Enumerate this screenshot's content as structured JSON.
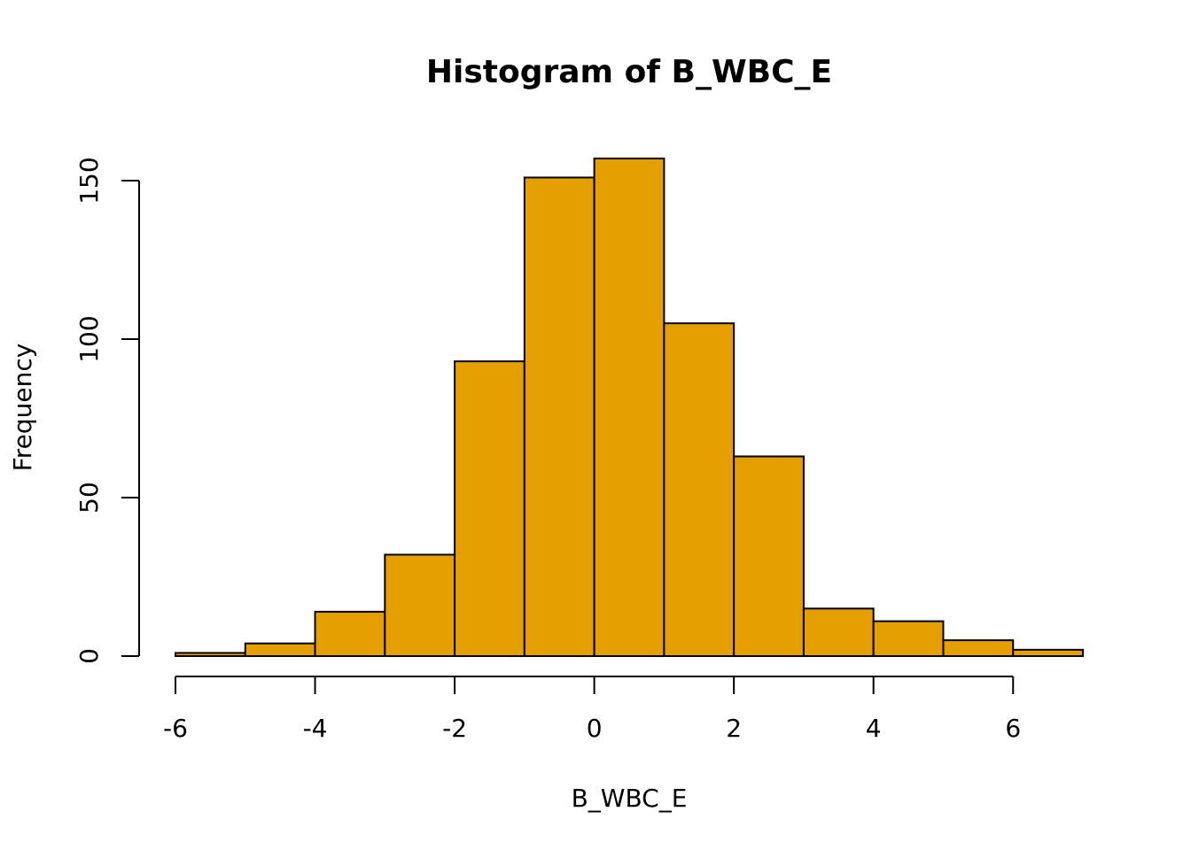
{
  "chart_data": {
    "type": "bar",
    "subtype": "histogram",
    "title": "Histogram of B_WBC_E",
    "xlabel": "B_WBC_E",
    "ylabel": "Frequency",
    "bin_edges": [
      -6,
      -5,
      -4,
      -3,
      -2,
      -1,
      0,
      1,
      2,
      3,
      4,
      5,
      6,
      7
    ],
    "values": [
      1,
      4,
      14,
      32,
      93,
      151,
      157,
      105,
      63,
      15,
      11,
      5,
      2
    ],
    "xlim": [
      -6,
      7
    ],
    "ylim": [
      0,
      157
    ],
    "x_ticks": [
      "-6",
      "-4",
      "-2",
      "0",
      "2",
      "4",
      "6"
    ],
    "y_ticks": [
      "0",
      "50",
      "100",
      "150"
    ],
    "bar_color": "#E69F00",
    "grid": false,
    "legend": "none"
  }
}
